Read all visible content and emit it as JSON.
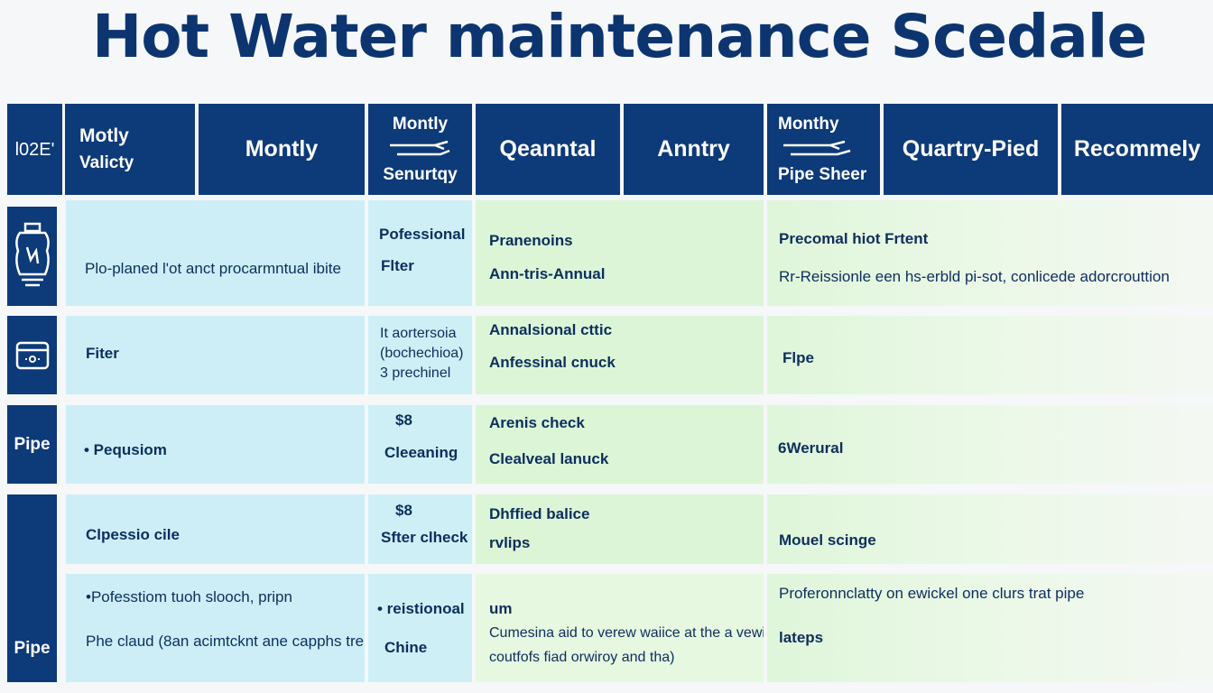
{
  "title": "Hot Water maintenance Scedale",
  "header": {
    "c0": "l02E'",
    "c1_line1": "Motly",
    "c1_line2": "Valicty",
    "c2": "Montly",
    "c3_line1": "Montly",
    "c3_line2": "Senurtqy",
    "c4": "Qeanntal",
    "c5": "Anntry",
    "c6_line1": "Monthy",
    "c6_line2": "Pipe Sheer",
    "c7": "Quartry-Pied",
    "c8": "Recommely"
  },
  "rows": {
    "r1": {
      "icon": "water-heater-icon",
      "task": "Plo-planed l'ot anct procarmntual ibite",
      "mid_line1": "Pofessional",
      "mid_line2": "Flter",
      "q_line1": "Pranenoins",
      "q_line2": "Ann-tris-Annual",
      "r_line1": "Precomal hiot Frtent",
      "r_line2": "Rr-Reissionle een hs-erbld pi-sot, conlicede adorcrouttion"
    },
    "r2": {
      "icon": "filter-icon",
      "task": "Fiter",
      "mid_line1": "It aortersoia",
      "mid_line2": "(bochechioa)",
      "mid_line3": "3 prechinel",
      "q_line1": "Annalsional cttic",
      "q_line2": "Anfessinal cnuck",
      "r_line1": "Flpe"
    },
    "r3": {
      "side": "Pipe",
      "task": "• Pequsiom",
      "mid_line1": "$8",
      "mid_line2": "Cleeaning",
      "q_line1": "Arenis check",
      "q_line2": "Clealveal lanuck",
      "r_line1": "6Werural"
    },
    "r4": {
      "task": "Clpessio cile",
      "mid_line1": "$8",
      "mid_line2": "Sfter clheck",
      "q_line1": "Dhffied balice",
      "q_line2": "rvlips",
      "r_line1": "Mouel scinge"
    },
    "r5": {
      "side": "Pipe",
      "task_line1": "•Pofesstiom tuoh slooch, pripn",
      "task_line2": "Phe claud (8an acimtcknt ane capphs tre",
      "mid_line1": "• reistionoal",
      "mid_line2": "Chine",
      "q_line1": "um",
      "q_line2": "Cumesina aid to verew waiice at the a vewinte",
      "q_line3": "coutfofs fiad orwiroy and tha)",
      "r_line1": "Proferonnclatty on ewickel one clurs trat pipe",
      "r_line2": "lateps"
    }
  },
  "colors": {
    "navy": "#0d3a78",
    "title": "#0c3570",
    "light_blue": "#cdeef7",
    "light_green": "#dcf5d6"
  }
}
